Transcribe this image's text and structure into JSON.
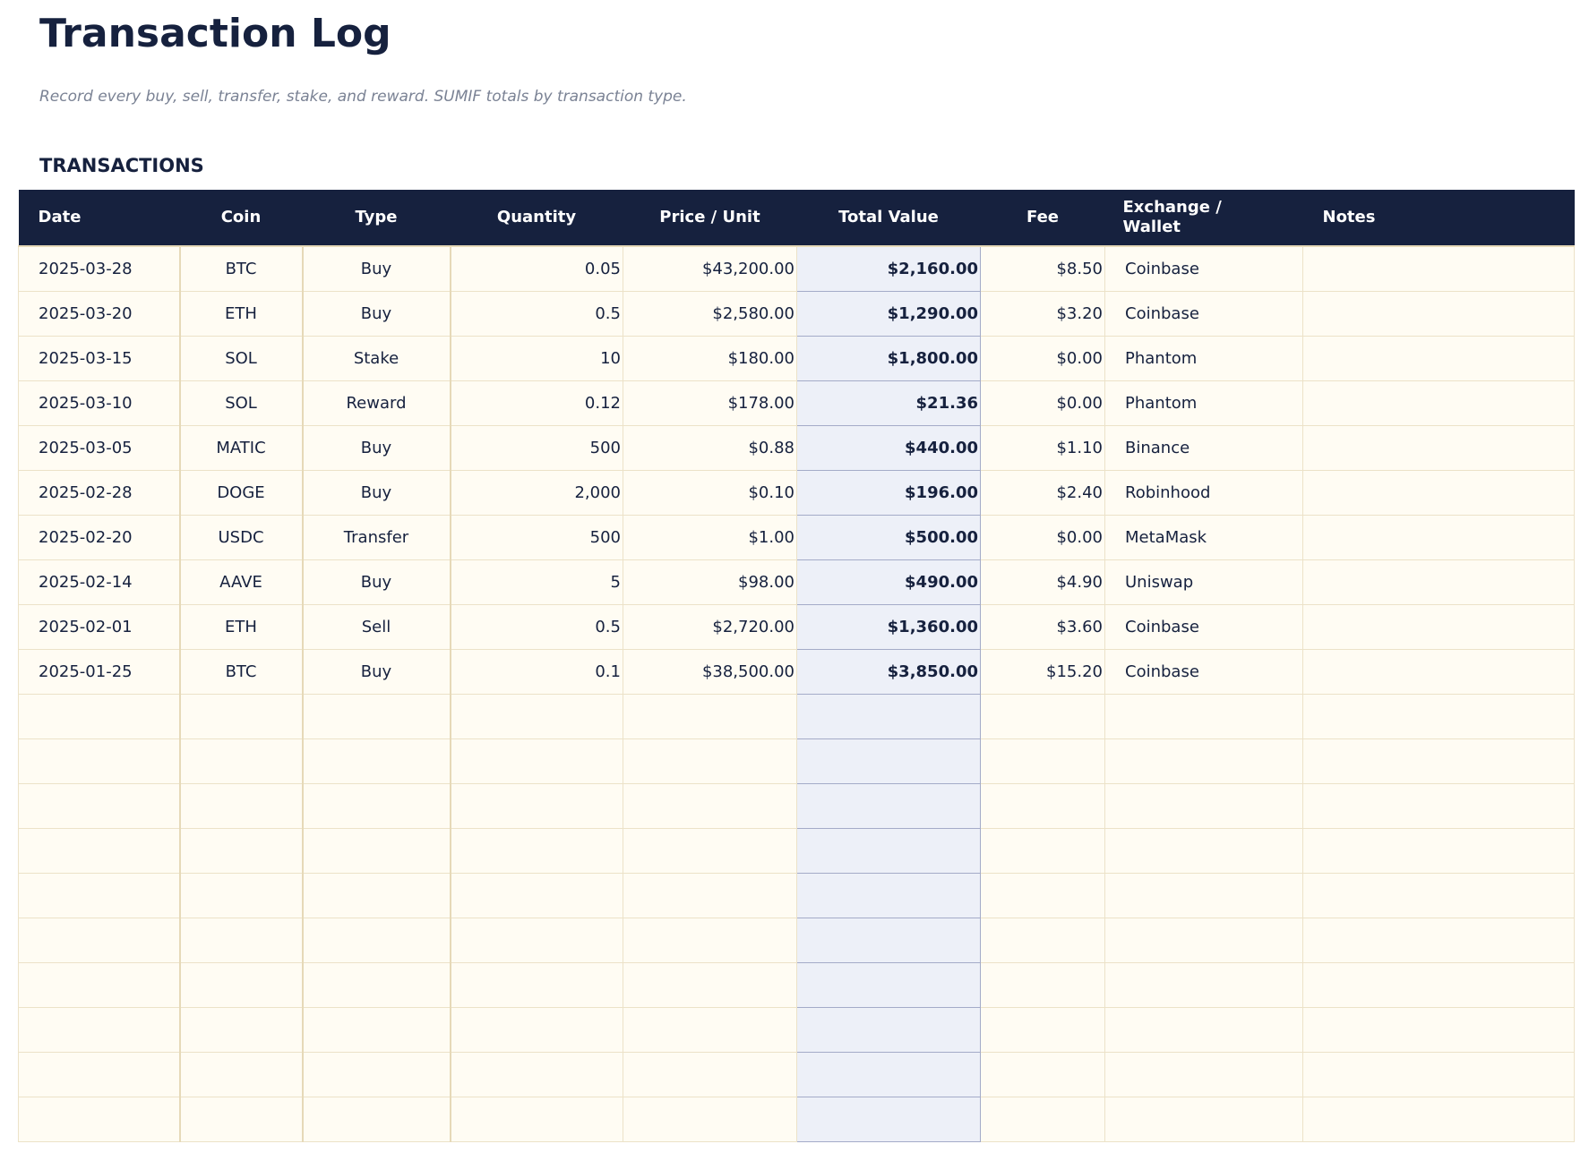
{
  "title": "Transaction Log",
  "subtitle": "Record every buy, sell, transfer, stake, and reward. SUMIF totals by transaction type.",
  "section": "TRANSACTIONS",
  "colors": {
    "header_bg": "#16213e",
    "row_bg": "#fffcf3",
    "total_col_bg": "#edf0f8"
  },
  "columns": [
    "Date",
    "Coin",
    "Type",
    "Quantity",
    "Price / Unit",
    "Total Value",
    "Fee",
    "Exchange / Wallet",
    "Notes"
  ],
  "rows": [
    [
      "2025-03-28",
      "BTC",
      "Buy",
      "0.05",
      "$43,200.00",
      "$2,160.00",
      "$8.50",
      "Coinbase",
      ""
    ],
    [
      "2025-03-20",
      "ETH",
      "Buy",
      "0.5",
      "$2,580.00",
      "$1,290.00",
      "$3.20",
      "Coinbase",
      ""
    ],
    [
      "2025-03-15",
      "SOL",
      "Stake",
      "10",
      "$180.00",
      "$1,800.00",
      "$0.00",
      "Phantom",
      ""
    ],
    [
      "2025-03-10",
      "SOL",
      "Reward",
      "0.12",
      "$178.00",
      "$21.36",
      "$0.00",
      "Phantom",
      ""
    ],
    [
      "2025-03-05",
      "MATIC",
      "Buy",
      "500",
      "$0.88",
      "$440.00",
      "$1.10",
      "Binance",
      ""
    ],
    [
      "2025-02-28",
      "DOGE",
      "Buy",
      "2,000",
      "$0.10",
      "$196.00",
      "$2.40",
      "Robinhood",
      ""
    ],
    [
      "2025-02-20",
      "USDC",
      "Transfer",
      "500",
      "$1.00",
      "$500.00",
      "$0.00",
      "MetaMask",
      ""
    ],
    [
      "2025-02-14",
      "AAVE",
      "Buy",
      "5",
      "$98.00",
      "$490.00",
      "$4.90",
      "Uniswap",
      ""
    ],
    [
      "2025-02-01",
      "ETH",
      "Sell",
      "0.5",
      "$2,720.00",
      "$1,360.00",
      "$3.60",
      "Coinbase",
      ""
    ],
    [
      "2025-01-25",
      "BTC",
      "Buy",
      "0.1",
      "$38,500.00",
      "$3,850.00",
      "$15.20",
      "Coinbase",
      ""
    ],
    [
      "",
      "",
      "",
      "",
      "",
      "",
      "",
      "",
      ""
    ],
    [
      "",
      "",
      "",
      "",
      "",
      "",
      "",
      "",
      ""
    ],
    [
      "",
      "",
      "",
      "",
      "",
      "",
      "",
      "",
      ""
    ],
    [
      "",
      "",
      "",
      "",
      "",
      "",
      "",
      "",
      ""
    ],
    [
      "",
      "",
      "",
      "",
      "",
      "",
      "",
      "",
      ""
    ],
    [
      "",
      "",
      "",
      "",
      "",
      "",
      "",
      "",
      ""
    ],
    [
      "",
      "",
      "",
      "",
      "",
      "",
      "",
      "",
      ""
    ],
    [
      "",
      "",
      "",
      "",
      "",
      "",
      "",
      "",
      ""
    ],
    [
      "",
      "",
      "",
      "",
      "",
      "",
      "",
      "",
      ""
    ],
    [
      "",
      "",
      "",
      "",
      "",
      "",
      "",
      "",
      ""
    ]
  ]
}
